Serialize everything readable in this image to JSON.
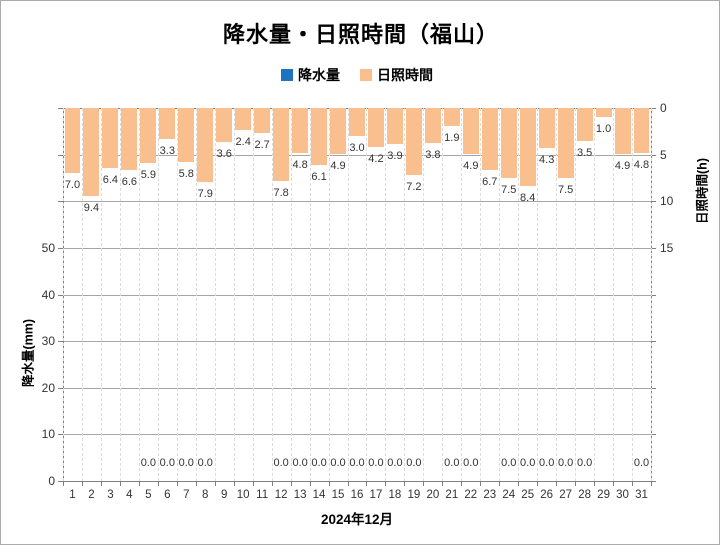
{
  "title": "降水量・日照時間（福山）",
  "legend": [
    {
      "label": "降水量",
      "color": "#1e73be"
    },
    {
      "label": "日照時間",
      "color": "#fabf8f"
    }
  ],
  "chart_data": {
    "type": "bar",
    "title": "降水量・日照時間（福山）",
    "x_title": "2024年12月",
    "categories": [
      1,
      2,
      3,
      4,
      5,
      6,
      7,
      8,
      9,
      10,
      11,
      12,
      13,
      14,
      15,
      16,
      17,
      18,
      19,
      20,
      21,
      22,
      23,
      24,
      25,
      26,
      27,
      28,
      29,
      30,
      31
    ],
    "series": [
      {
        "name": "降水量",
        "unit": "mm",
        "axis": "left",
        "color": "#1e73be",
        "values": [
          null,
          null,
          null,
          null,
          0.0,
          0.0,
          0.0,
          0.0,
          null,
          null,
          null,
          0.0,
          0.0,
          0.0,
          0.0,
          0.0,
          0.0,
          0.0,
          0.0,
          null,
          0.0,
          0.0,
          null,
          0.0,
          0.0,
          0.0,
          0.0,
          0.0,
          null,
          null,
          0.0
        ]
      },
      {
        "name": "日照時間",
        "unit": "h",
        "axis": "right",
        "color": "#fabf8f",
        "values": [
          7.0,
          9.4,
          6.4,
          6.6,
          5.9,
          3.3,
          5.8,
          7.9,
          3.6,
          2.4,
          2.7,
          7.8,
          4.8,
          6.1,
          4.9,
          3.0,
          4.2,
          3.9,
          7.2,
          3.8,
          1.9,
          4.9,
          6.7,
          7.5,
          8.4,
          4.3,
          7.5,
          3.5,
          1.0,
          4.9,
          4.8
        ]
      }
    ],
    "left_axis": {
      "title": "降水量(mm)",
      "min": 0,
      "max": 80,
      "tick_step": 10,
      "labeled_ticks": [
        0,
        10,
        20,
        30,
        40,
        50
      ]
    },
    "right_axis": {
      "title": "日照時間(h)",
      "min": 0,
      "max": 40,
      "tick_step": 5,
      "labeled_ticks": [
        0,
        5,
        10,
        15
      ],
      "inverted": true
    },
    "grid": {
      "horizontal_solid": true,
      "vertical_dashed": true
    },
    "legend_position": "top",
    "colors": {
      "gridline": "#a6a6a6",
      "axis_line": "#808080",
      "dashed_gridline": "#dcdcdc",
      "label_text": "#333333"
    }
  }
}
